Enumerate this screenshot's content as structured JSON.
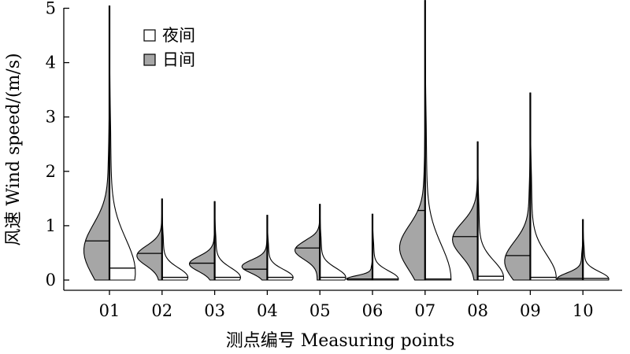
{
  "chart_data": {
    "type": "split-violin",
    "xlabel": "测点编号 Measuring points",
    "ylabel": "风速 Wind speed/(m/s)",
    "ylim": [
      -0.15,
      5.1
    ],
    "yticks": [
      0,
      1,
      2,
      3,
      4,
      5
    ],
    "grid": false,
    "legend": {
      "placement": "top-left"
    },
    "categories": [
      "01",
      "02",
      "03",
      "04",
      "05",
      "06",
      "07",
      "08",
      "09",
      "10"
    ],
    "series": [
      {
        "name": "日间",
        "side": "left",
        "color": "#a6a6a6",
        "min": [
          0.0,
          0.0,
          0.0,
          0.0,
          0.0,
          0.0,
          0.0,
          0.0,
          0.0,
          0.0
        ],
        "max": [
          3.95,
          1.5,
          1.15,
          1.0,
          1.4,
          0.45,
          3.35,
          2.55,
          2.95,
          0.9
        ],
        "median": [
          0.72,
          0.49,
          0.31,
          0.2,
          0.59,
          0.02,
          1.28,
          0.8,
          0.45,
          0.03
        ],
        "peak_density_at": [
          0.55,
          0.45,
          0.3,
          0.25,
          0.55,
          0.02,
          0.6,
          0.75,
          0.35,
          0.02
        ]
      },
      {
        "name": "夜间",
        "side": "right",
        "color": "#ffffff",
        "min": [
          0.0,
          0.0,
          0.0,
          0.0,
          0.0,
          0.0,
          0.0,
          0.0,
          0.0,
          0.0
        ],
        "max": [
          5.05,
          1.45,
          1.45,
          1.2,
          1.4,
          1.22,
          5.15,
          2.5,
          3.45,
          1.12
        ],
        "median": [
          0.22,
          0.05,
          0.05,
          0.05,
          0.05,
          0.02,
          0.02,
          0.07,
          0.05,
          0.03
        ],
        "peak_density_at": [
          0.15,
          0.05,
          0.05,
          0.05,
          0.05,
          0.02,
          0.02,
          0.05,
          0.05,
          0.02
        ]
      }
    ]
  }
}
